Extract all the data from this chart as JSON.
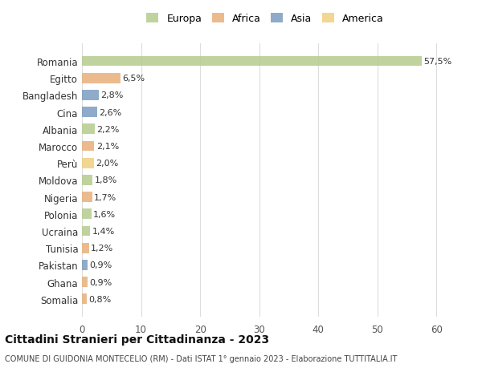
{
  "countries": [
    "Romania",
    "Egitto",
    "Bangladesh",
    "Cina",
    "Albania",
    "Marocco",
    "Perù",
    "Moldova",
    "Nigeria",
    "Polonia",
    "Ucraina",
    "Tunisia",
    "Pakistan",
    "Ghana",
    "Somalia"
  ],
  "values": [
    57.5,
    6.5,
    2.8,
    2.6,
    2.2,
    2.1,
    2.0,
    1.8,
    1.7,
    1.6,
    1.4,
    1.2,
    0.9,
    0.9,
    0.8
  ],
  "labels": [
    "57,5%",
    "6,5%",
    "2,8%",
    "2,6%",
    "2,2%",
    "2,1%",
    "2,0%",
    "1,8%",
    "1,7%",
    "1,6%",
    "1,4%",
    "1,2%",
    "0,9%",
    "0,9%",
    "0,8%"
  ],
  "continent": [
    "Europa",
    "Africa",
    "Asia",
    "Asia",
    "Europa",
    "Africa",
    "America",
    "Europa",
    "Africa",
    "Europa",
    "Europa",
    "Africa",
    "Asia",
    "Africa",
    "Africa"
  ],
  "colors": {
    "Europa": "#b5cc8e",
    "Africa": "#e8b07a",
    "Asia": "#7b9dc0",
    "America": "#f0d080"
  },
  "legend_colors": {
    "Europa": "#b5cc8e",
    "Africa": "#e8b07a",
    "Asia": "#7b9dc0",
    "America": "#f0d080"
  },
  "title": "Cittadini Stranieri per Cittadinanza - 2023",
  "subtitle": "COMUNE DI GUIDONIA MONTECELIO (RM) - Dati ISTAT 1° gennaio 2023 - Elaborazione TUTTITALIA.IT",
  "xlim": [
    0,
    62
  ],
  "xticks": [
    0,
    10,
    20,
    30,
    40,
    50,
    60
  ],
  "background_color": "#ffffff",
  "grid_color": "#dddddd"
}
